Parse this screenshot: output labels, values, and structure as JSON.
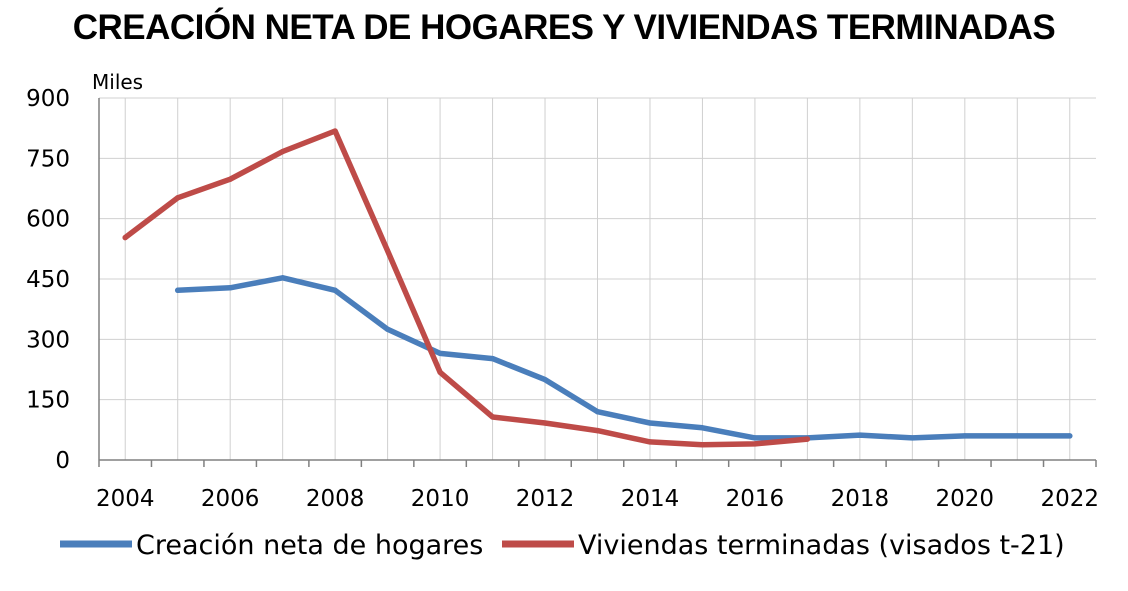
{
  "chart_data": {
    "type": "line",
    "title": "CREACIÓN NETA DE HOGARES Y VIVIENDAS TERMINADAS",
    "unit_label": "Miles",
    "ylim": [
      0,
      900
    ],
    "y_ticks": [
      0,
      150,
      300,
      450,
      600,
      750,
      900
    ],
    "xlim": [
      2003.5,
      2022.5
    ],
    "x_ticks": [
      2004,
      2006,
      2008,
      2010,
      2012,
      2014,
      2016,
      2018,
      2020,
      2022
    ],
    "grid": true,
    "legend_position": "bottom",
    "series": [
      {
        "name": "Creación neta de hogares",
        "color": "#4a7ebb",
        "x": [
          2005,
          2006,
          2007,
          2008,
          2009,
          2010,
          2011,
          2012,
          2013,
          2014,
          2015,
          2016,
          2017,
          2018,
          2019,
          2020,
          2021,
          2022
        ],
        "y": [
          422,
          428,
          453,
          422,
          325,
          265,
          252,
          200,
          120,
          92,
          80,
          55,
          55,
          62,
          55,
          60,
          60,
          60
        ]
      },
      {
        "name": "Viviendas terminadas (visados t-21)",
        "color": "#be4b48",
        "x": [
          2004,
          2005,
          2006,
          2007,
          2008,
          2009,
          2010,
          2011,
          2012,
          2013,
          2014,
          2015,
          2016,
          2017
        ],
        "y": [
          553,
          652,
          698,
          767,
          818,
          520,
          218,
          107,
          92,
          73,
          45,
          38,
          40,
          52
        ]
      }
    ]
  }
}
